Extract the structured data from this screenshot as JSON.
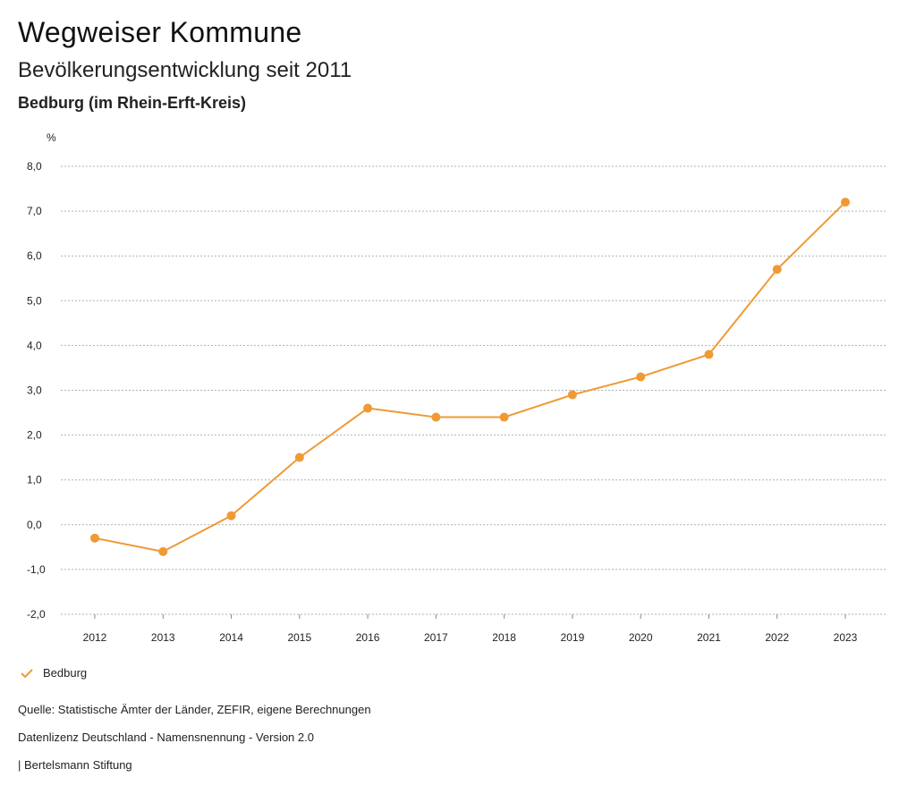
{
  "header": {
    "title": "Wegweiser Kommune",
    "subtitle": "Bevölkerungsentwicklung seit 2011",
    "region": "Bedburg (im Rhein-Erft-Kreis)"
  },
  "chart_data": {
    "type": "line",
    "title": "Bevölkerungsentwicklung seit 2011",
    "ylabel": "%",
    "xlabel": "",
    "ylim": [
      -2.0,
      8.0
    ],
    "yticks": [
      -2.0,
      -1.0,
      0.0,
      1.0,
      2.0,
      3.0,
      4.0,
      5.0,
      6.0,
      7.0,
      8.0
    ],
    "ytick_labels": [
      "-2,0",
      "-1,0",
      "0,0",
      "1,0",
      "2,0",
      "3,0",
      "4,0",
      "5,0",
      "6,0",
      "7,0",
      "8,0"
    ],
    "categories": [
      "2012",
      "2013",
      "2014",
      "2015",
      "2016",
      "2017",
      "2018",
      "2019",
      "2020",
      "2021",
      "2022",
      "2023"
    ],
    "series": [
      {
        "name": "Bedburg",
        "color": "#ef9a35",
        "values": [
          -0.3,
          -0.6,
          0.2,
          1.5,
          2.6,
          2.4,
          2.4,
          2.9,
          3.3,
          3.8,
          5.7,
          7.2
        ]
      }
    ],
    "grid": true,
    "legend": "bottom-left"
  },
  "legend": {
    "label": "Bedburg"
  },
  "footer": {
    "source": "Quelle: Statistische Ämter der Länder, ZEFIR, eigene Berechnungen",
    "license": "Datenlizenz Deutschland - Namensnennung - Version 2.0",
    "publisher": "| Bertelsmann Stiftung"
  }
}
